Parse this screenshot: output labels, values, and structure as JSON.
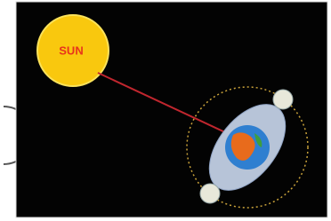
{
  "sun": {
    "label": "SUN"
  }
}
